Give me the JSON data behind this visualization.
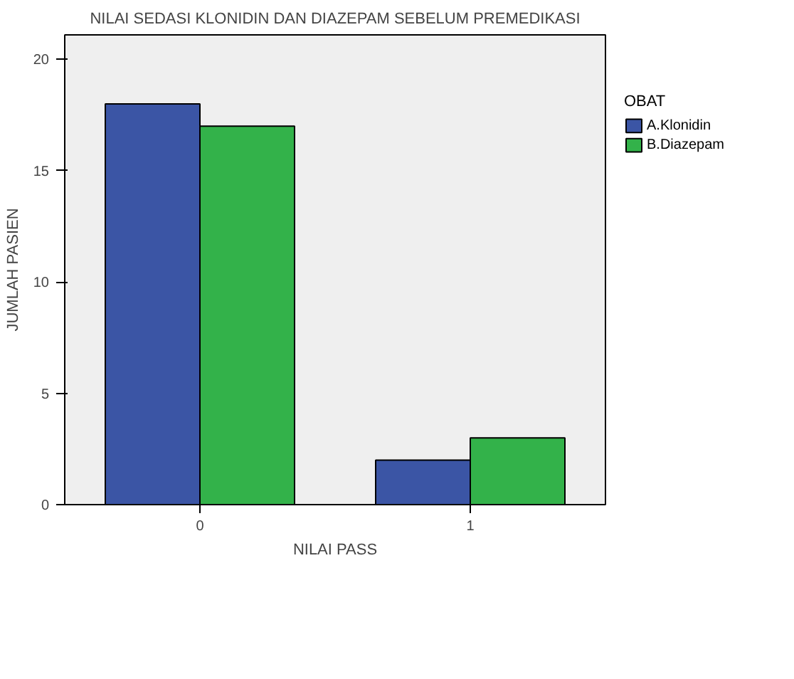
{
  "chart_data": {
    "type": "bar",
    "title": "NILAI SEDASI KLONIDIN DAN DIAZEPAM SEBELUM PREMEDIKASI",
    "xlabel": "NILAI PASS",
    "ylabel": "JUMLAH PASIEN",
    "legend_title": "OBAT",
    "categories": [
      "0",
      "1"
    ],
    "series": [
      {
        "name": "A.Klonidin",
        "color": "#3b55a5",
        "values": [
          18,
          2
        ]
      },
      {
        "name": "B.Diazepam",
        "color": "#33b24a",
        "values": [
          17,
          3
        ]
      }
    ],
    "ylim": [
      0,
      21.1
    ],
    "yticks": [
      0,
      5,
      10,
      15,
      20
    ],
    "grid": false,
    "legend": "right"
  }
}
